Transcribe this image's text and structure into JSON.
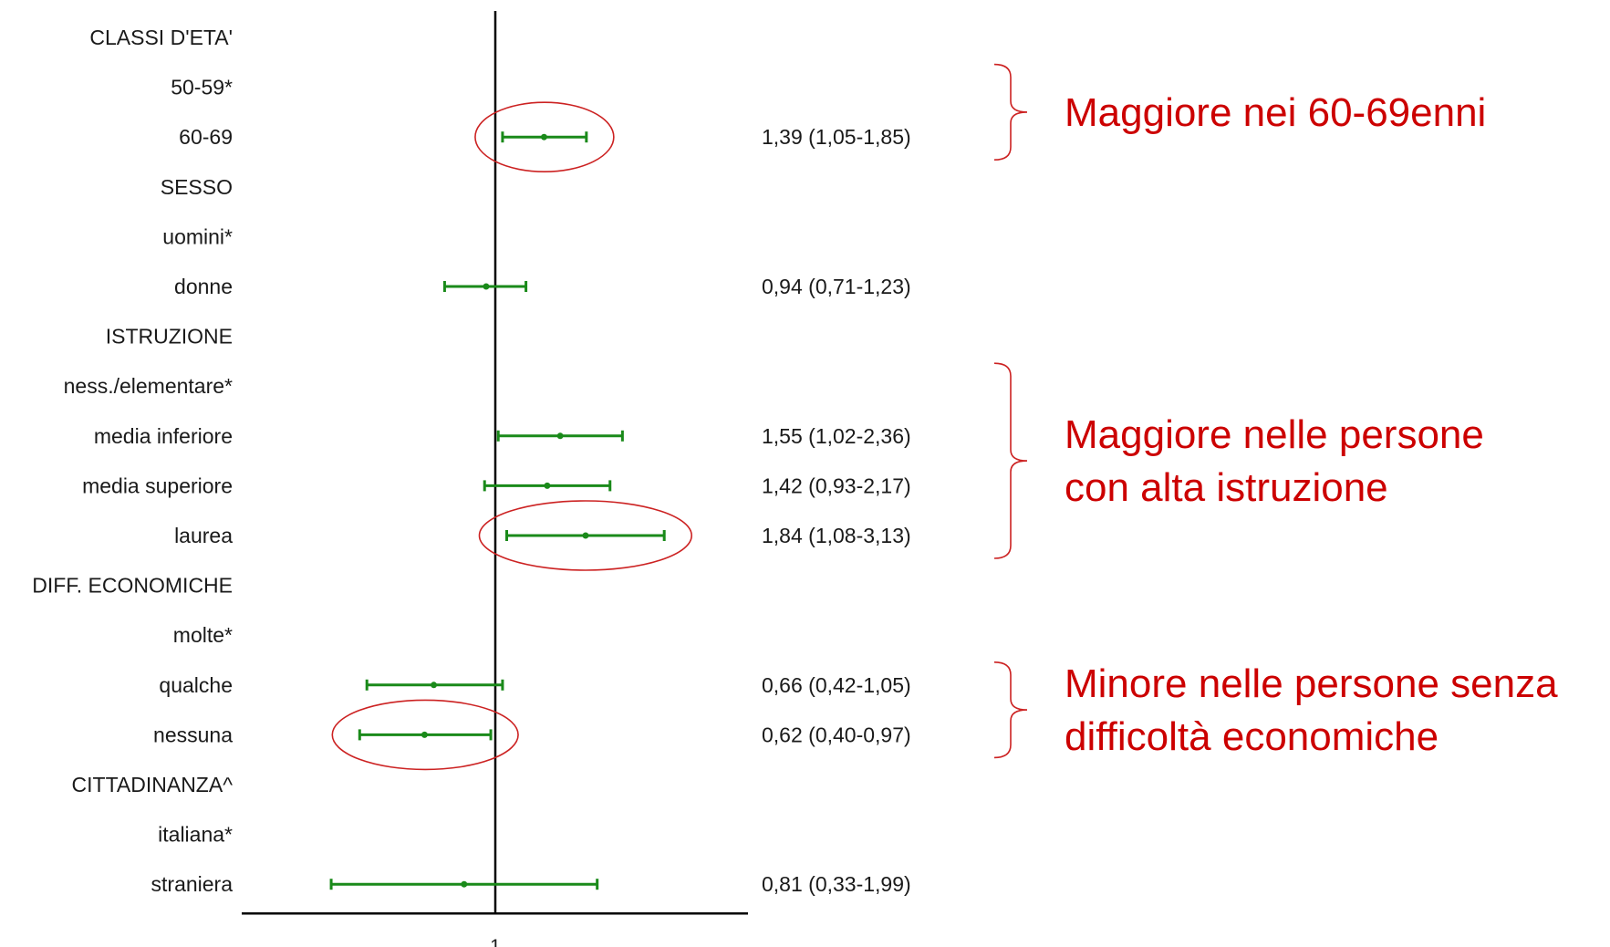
{
  "chart_data": {
    "type": "forest",
    "reference_value": 1,
    "x_tick_labels": [
      "1"
    ],
    "xlim_log": [
      0.18,
      5.5
    ],
    "colors": {
      "ci": "#1a8a1a",
      "axis": "#000000",
      "highlight": "#cc2222",
      "annotation": "#cc0000"
    },
    "rows": [
      {
        "label": "CLASSI D'ETA'",
        "kind": "header"
      },
      {
        "label": "50-59*",
        "kind": "reference"
      },
      {
        "label": "60-69",
        "kind": "estimate",
        "or": 1.39,
        "lo": 1.05,
        "hi": 1.85,
        "text": "1,39 (1,05-1,85)",
        "highlight": true
      },
      {
        "label": "SESSO",
        "kind": "header"
      },
      {
        "label": "uomini*",
        "kind": "reference"
      },
      {
        "label": "donne",
        "kind": "estimate",
        "or": 0.94,
        "lo": 0.71,
        "hi": 1.23,
        "text": "0,94 (0,71-1,23)"
      },
      {
        "label": "ISTRUZIONE",
        "kind": "header"
      },
      {
        "label": "ness./elementare*",
        "kind": "reference"
      },
      {
        "label": "media inferiore",
        "kind": "estimate",
        "or": 1.55,
        "lo": 1.02,
        "hi": 2.36,
        "text": "1,55 (1,02-2,36)"
      },
      {
        "label": "media superiore",
        "kind": "estimate",
        "or": 1.42,
        "lo": 0.93,
        "hi": 2.17,
        "text": "1,42 (0,93-2,17)"
      },
      {
        "label": "laurea",
        "kind": "estimate",
        "or": 1.84,
        "lo": 1.08,
        "hi": 3.13,
        "text": "1,84 (1,08-3,13)",
        "highlight": true
      },
      {
        "label": "DIFF. ECONOMICHE",
        "kind": "header"
      },
      {
        "label": "molte*",
        "kind": "reference"
      },
      {
        "label": "qualche",
        "kind": "estimate",
        "or": 0.66,
        "lo": 0.42,
        "hi": 1.05,
        "text": "0,66 (0,42-1,05)"
      },
      {
        "label": "nessuna",
        "kind": "estimate",
        "or": 0.62,
        "lo": 0.4,
        "hi": 0.97,
        "text": "0,62 (0,40-0,97)",
        "highlight": true
      },
      {
        "label": "CITTADINANZA^",
        "kind": "header"
      },
      {
        "label": "italiana*",
        "kind": "reference"
      },
      {
        "label": "straniera",
        "kind": "estimate",
        "or": 0.81,
        "lo": 0.33,
        "hi": 1.99,
        "text": "0,81 (0,33-1,99)"
      }
    ],
    "annotations": [
      {
        "lines": [
          "Maggiore nei 60-69enni"
        ],
        "from_row": 1,
        "to_row": 2
      },
      {
        "lines": [
          "Maggiore nelle persone",
          "con alta istruzione"
        ],
        "from_row": 7,
        "to_row": 10
      },
      {
        "lines": [
          "Minore nelle persone senza",
          "difficoltà economiche"
        ],
        "from_row": 13,
        "to_row": 14
      }
    ]
  }
}
